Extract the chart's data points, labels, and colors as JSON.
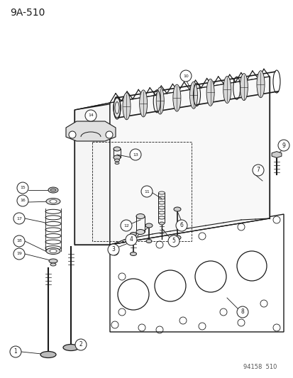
{
  "title_label": "9A-510",
  "footer_label": "94158  510",
  "bg_color": "#ffffff",
  "line_color": "#1a1a1a",
  "figsize": [
    4.14,
    5.33
  ],
  "dpi": 100,
  "title_fontsize": 10,
  "footer_fontsize": 6,
  "label_circle_r": 7,
  "label_fontsize": 5.5
}
